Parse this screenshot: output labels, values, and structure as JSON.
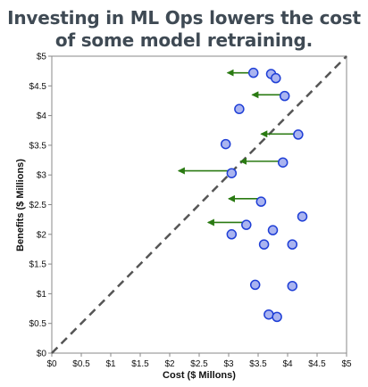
{
  "title": {
    "line1": "Investing in ML Ops lowers the cost",
    "line2": "of some model retraining."
  },
  "colors": {
    "point_fill": "#aab4f0",
    "point_stroke": "#1f3fd6",
    "arrow": "#2a7a12",
    "diagonal": "#555555"
  },
  "chart_data": {
    "type": "scatter",
    "xlabel": "Cost ($ Millons)",
    "ylabel": "Benefits ($ Millions)",
    "xlim": [
      0,
      5
    ],
    "ylim": [
      0,
      5
    ],
    "x_ticks": [
      "$0",
      "$0.5",
      "$1",
      "$1.5",
      "$2",
      "$2.5",
      "$3",
      "$3.5",
      "$4",
      "$4.5",
      "$5"
    ],
    "y_ticks": [
      "$0",
      "$0.5",
      "$1",
      "$1.5",
      "$2",
      "$2.5",
      "$3",
      "$3.5",
      "$4",
      "$4.5",
      "$5"
    ],
    "grid": false,
    "diagonal": {
      "style": "dashed",
      "from": [
        0,
        0
      ],
      "to": [
        5,
        5
      ]
    },
    "points": [
      {
        "x": 3.42,
        "y": 4.72
      },
      {
        "x": 3.72,
        "y": 4.7
      },
      {
        "x": 3.8,
        "y": 4.63
      },
      {
        "x": 3.95,
        "y": 4.33
      },
      {
        "x": 3.18,
        "y": 4.11
      },
      {
        "x": 4.18,
        "y": 3.68
      },
      {
        "x": 2.95,
        "y": 3.52
      },
      {
        "x": 3.92,
        "y": 3.21
      },
      {
        "x": 3.05,
        "y": 3.03
      },
      {
        "x": 3.55,
        "y": 2.55
      },
      {
        "x": 4.25,
        "y": 2.3
      },
      {
        "x": 3.3,
        "y": 2.16
      },
      {
        "x": 3.75,
        "y": 2.07
      },
      {
        "x": 3.05,
        "y": 2.0
      },
      {
        "x": 3.6,
        "y": 1.83
      },
      {
        "x": 4.08,
        "y": 1.83
      },
      {
        "x": 3.45,
        "y": 1.15
      },
      {
        "x": 4.08,
        "y": 1.13
      },
      {
        "x": 3.68,
        "y": 0.65
      },
      {
        "x": 3.82,
        "y": 0.61
      }
    ],
    "arrows": [
      {
        "x_from": 3.42,
        "x_to": 2.98,
        "y": 4.72
      },
      {
        "x_from": 3.95,
        "x_to": 3.4,
        "y": 4.35
      },
      {
        "x_from": 4.18,
        "x_to": 3.55,
        "y": 3.69
      },
      {
        "x_from": 3.92,
        "x_to": 3.2,
        "y": 3.23
      },
      {
        "x_from": 3.05,
        "x_to": 2.15,
        "y": 3.07
      },
      {
        "x_from": 3.55,
        "x_to": 3.0,
        "y": 2.6
      },
      {
        "x_from": 3.3,
        "x_to": 2.65,
        "y": 2.2
      }
    ]
  }
}
